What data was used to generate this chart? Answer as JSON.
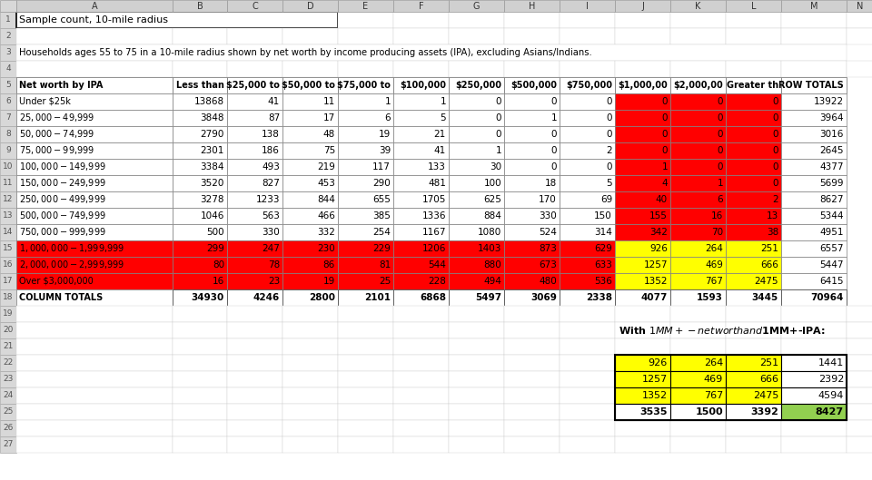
{
  "title_row1": "Sample count, 10-mile radius",
  "title_row3": "Households ages 55 to 75 in a 10-mile radius shown by net worth by income producing assets (IPA), excluding Asians/Indians.",
  "col_headers": [
    "Net worth by IPA",
    "Less than",
    "$25,000 to",
    "$50,000 to",
    "$75,000 to",
    "$100,000",
    "$250,000",
    "$500,000",
    "$750,000",
    "$1,000,00",
    "$2,000,00",
    "Greater th",
    "ROW TOTALS"
  ],
  "row_labels": [
    "Under $25k",
    "$25,000 - $49,999",
    "$50,000 - $74,999",
    "$75,000 - $99,999",
    "$100,000 - $149,999",
    "$150,000 - $249,999",
    "$250,000 - $499,999",
    "$500,000 - $749,999",
    "$750,000 - $999,999",
    "$1,000,000 - $1,999,999",
    "$2,000,000 - $2,999,999",
    "Over $3,000,000",
    "COLUMN TOTALS"
  ],
  "data": [
    [
      13868,
      41,
      11,
      1,
      1,
      0,
      0,
      0,
      0,
      0,
      0,
      13922
    ],
    [
      3848,
      87,
      17,
      6,
      5,
      0,
      1,
      0,
      0,
      0,
      0,
      3964
    ],
    [
      2790,
      138,
      48,
      19,
      21,
      0,
      0,
      0,
      0,
      0,
      0,
      3016
    ],
    [
      2301,
      186,
      75,
      39,
      41,
      1,
      0,
      2,
      0,
      0,
      0,
      2645
    ],
    [
      3384,
      493,
      219,
      117,
      133,
      30,
      0,
      0,
      1,
      0,
      0,
      4377
    ],
    [
      3520,
      827,
      453,
      290,
      481,
      100,
      18,
      5,
      4,
      1,
      0,
      5699
    ],
    [
      3278,
      1233,
      844,
      655,
      1705,
      625,
      170,
      69,
      40,
      6,
      2,
      8627
    ],
    [
      1046,
      563,
      466,
      385,
      1336,
      884,
      330,
      150,
      155,
      16,
      13,
      5344
    ],
    [
      500,
      330,
      332,
      254,
      1167,
      1080,
      524,
      314,
      342,
      70,
      38,
      4951
    ],
    [
      299,
      247,
      230,
      229,
      1206,
      1403,
      873,
      629,
      926,
      264,
      251,
      6557
    ],
    [
      80,
      78,
      86,
      81,
      544,
      880,
      673,
      633,
      1257,
      469,
      666,
      5447
    ],
    [
      16,
      23,
      19,
      25,
      228,
      494,
      480,
      536,
      1352,
      767,
      2475,
      6415
    ],
    [
      34930,
      4246,
      2800,
      2101,
      6868,
      5497,
      3069,
      2338,
      4077,
      1593,
      3445,
      70964
    ]
  ],
  "summary_label": "With $1MM+-net worth and $1MM+-IPA:",
  "summary_data": [
    [
      926,
      264,
      251,
      1441
    ],
    [
      1257,
      469,
      666,
      2392
    ],
    [
      1352,
      767,
      2475,
      4594
    ],
    [
      3535,
      1500,
      3392,
      8427
    ]
  ],
  "bg_color": "#ffffff",
  "red_color": "#ff0000",
  "yellow_color": "#ffff00",
  "green_color": "#92d050"
}
